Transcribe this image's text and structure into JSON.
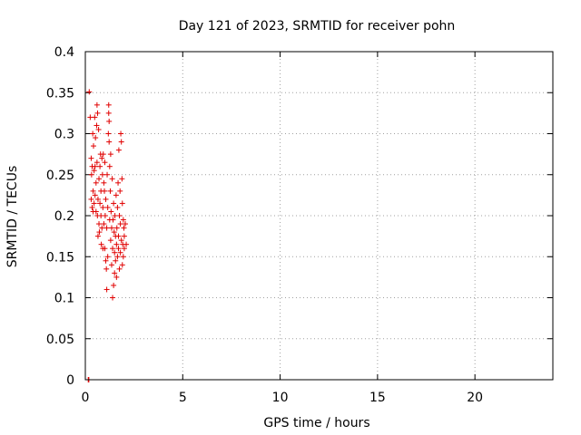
{
  "chart_data": {
    "type": "scatter",
    "title": "Day 121 of 2023, SRMTID for receiver pohn",
    "xlabel": "GPS time / hours",
    "ylabel": "SRMTID / TECUs",
    "xlim": [
      0,
      24
    ],
    "ylim": [
      0,
      0.4
    ],
    "xticks": [
      0,
      5,
      10,
      15,
      20
    ],
    "xtick_labels": [
      "0",
      "5",
      "10",
      "15",
      "20"
    ],
    "yticks": [
      0,
      0.05,
      0.1,
      0.15,
      0.2,
      0.25,
      0.3,
      0.35,
      0.4
    ],
    "ytick_labels": [
      "0",
      "0.05",
      "0.1",
      "0.15",
      "0.2",
      "0.25",
      "0.3",
      "0.35",
      "0.4"
    ],
    "grid": true,
    "marker": "+",
    "marker_color": "#e00000",
    "series": [
      {
        "name": "SRMTID",
        "points": [
          [
            0.15,
            0.0
          ],
          [
            0.18,
            0.0
          ],
          [
            0.2,
            0.351
          ],
          [
            0.25,
            0.32
          ],
          [
            0.3,
            0.27
          ],
          [
            0.3,
            0.22
          ],
          [
            0.32,
            0.25
          ],
          [
            0.35,
            0.21
          ],
          [
            0.35,
            0.26
          ],
          [
            0.38,
            0.3
          ],
          [
            0.4,
            0.23
          ],
          [
            0.4,
            0.205
          ],
          [
            0.42,
            0.285
          ],
          [
            0.45,
            0.215
          ],
          [
            0.45,
            0.255
          ],
          [
            0.48,
            0.32
          ],
          [
            0.5,
            0.225
          ],
          [
            0.5,
            0.26
          ],
          [
            0.52,
            0.295
          ],
          [
            0.55,
            0.205
          ],
          [
            0.55,
            0.24
          ],
          [
            0.58,
            0.31
          ],
          [
            0.6,
            0.335
          ],
          [
            0.6,
            0.265
          ],
          [
            0.62,
            0.2
          ],
          [
            0.63,
            0.325
          ],
          [
            0.65,
            0.22
          ],
          [
            0.65,
            0.175
          ],
          [
            0.68,
            0.305
          ],
          [
            0.7,
            0.245
          ],
          [
            0.7,
            0.19
          ],
          [
            0.72,
            0.18
          ],
          [
            0.75,
            0.26
          ],
          [
            0.75,
            0.215
          ],
          [
            0.78,
            0.275
          ],
          [
            0.8,
            0.2
          ],
          [
            0.8,
            0.23
          ],
          [
            0.82,
            0.165
          ],
          [
            0.85,
            0.27
          ],
          [
            0.85,
            0.185
          ],
          [
            0.88,
            0.25
          ],
          [
            0.9,
            0.21
          ],
          [
            0.9,
            0.16
          ],
          [
            0.92,
            0.275
          ],
          [
            0.95,
            0.24
          ],
          [
            0.95,
            0.19
          ],
          [
            0.98,
            0.23
          ],
          [
            1.0,
            0.265
          ],
          [
            1.0,
            0.16
          ],
          [
            1.02,
            0.2
          ],
          [
            1.05,
            0.145
          ],
          [
            1.05,
            0.22
          ],
          [
            1.08,
            0.135
          ],
          [
            1.1,
            0.185
          ],
          [
            1.1,
            0.11
          ],
          [
            1.12,
            0.25
          ],
          [
            1.15,
            0.21
          ],
          [
            1.15,
            0.15
          ],
          [
            1.18,
            0.3
          ],
          [
            1.2,
            0.335
          ],
          [
            1.2,
            0.325
          ],
          [
            1.22,
            0.315
          ],
          [
            1.22,
            0.29
          ],
          [
            1.25,
            0.26
          ],
          [
            1.25,
            0.195
          ],
          [
            1.28,
            0.23
          ],
          [
            1.3,
            0.275
          ],
          [
            1.3,
            0.17
          ],
          [
            1.32,
            0.205
          ],
          [
            1.35,
            0.14
          ],
          [
            1.35,
            0.185
          ],
          [
            1.38,
            0.245
          ],
          [
            1.4,
            0.16
          ],
          [
            1.4,
            0.1
          ],
          [
            1.42,
            0.195
          ],
          [
            1.45,
            0.115
          ],
          [
            1.45,
            0.215
          ],
          [
            1.48,
            0.18
          ],
          [
            1.5,
            0.13
          ],
          [
            1.5,
            0.155
          ],
          [
            1.52,
            0.2
          ],
          [
            1.55,
            0.175
          ],
          [
            1.55,
            0.145
          ],
          [
            1.58,
            0.225
          ],
          [
            1.6,
            0.165
          ],
          [
            1.6,
            0.125
          ],
          [
            1.62,
            0.185
          ],
          [
            1.65,
            0.21
          ],
          [
            1.65,
            0.15
          ],
          [
            1.68,
            0.24
          ],
          [
            1.7,
            0.175
          ],
          [
            1.7,
            0.16
          ],
          [
            1.72,
            0.28
          ],
          [
            1.75,
            0.2
          ],
          [
            1.75,
            0.135
          ],
          [
            1.78,
            0.23
          ],
          [
            1.8,
            0.19
          ],
          [
            1.8,
            0.155
          ],
          [
            1.82,
            0.3
          ],
          [
            1.85,
            0.29
          ],
          [
            1.85,
            0.17
          ],
          [
            1.88,
            0.245
          ],
          [
            1.9,
            0.215
          ],
          [
            1.9,
            0.14
          ],
          [
            1.92,
            0.165
          ],
          [
            1.95,
            0.195
          ],
          [
            1.95,
            0.15
          ],
          [
            1.98,
            0.185
          ],
          [
            2.0,
            0.16
          ],
          [
            2.0,
            0.175
          ],
          [
            2.05,
            0.19
          ],
          [
            2.1,
            0.165
          ]
        ]
      }
    ]
  }
}
